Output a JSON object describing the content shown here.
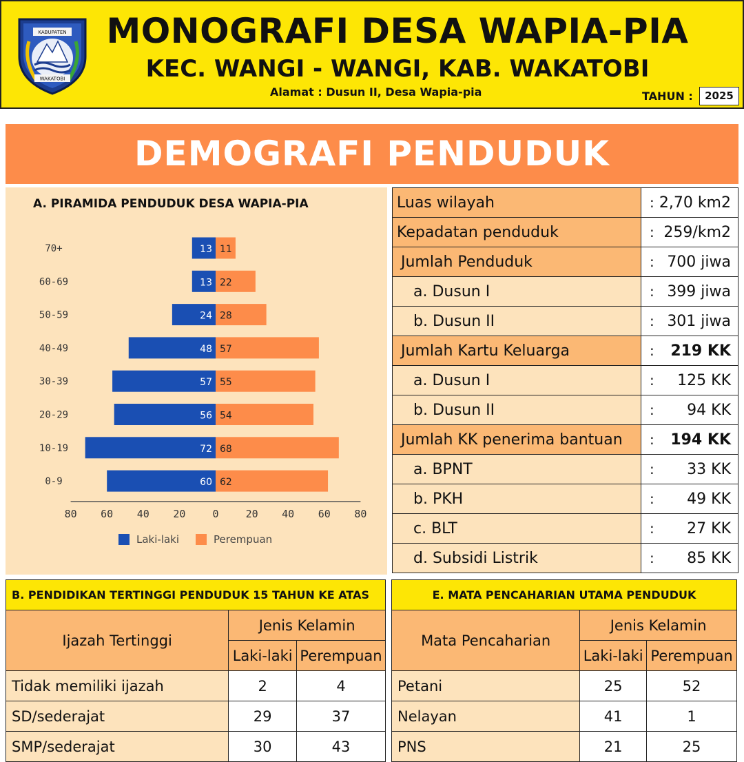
{
  "header": {
    "title": "MONOGRAFI DESA WAPIA-PIA",
    "subtitle": "KEC. WANGI - WANGI, KAB. WAKATOBI",
    "address": "Alamat : Dusun II, Desa Wapia-pia",
    "year_label": "TAHUN :",
    "year": "2025",
    "logo_top_text": "KABUPATEN",
    "logo_bottom_text": "WAKATOBI"
  },
  "banner": "DEMOGRAFI PENDUDUK",
  "pyramid_title": "A. PIRAMIDA PENDUDUK DESA WAPIA-PIA",
  "chart_data": {
    "type": "bar",
    "orientation": "horizontal",
    "title": "A. PIRAMIDA PENDUDUK DESA WAPIA-PIA",
    "categories": [
      "70+",
      "60-69",
      "50-59",
      "40-49",
      "30-39",
      "20-29",
      "10-19",
      "0-9"
    ],
    "series": [
      {
        "name": "Laki-laki",
        "values": [
          13,
          13,
          24,
          48,
          57,
          56,
          72,
          60
        ],
        "color": "#1a4fb3"
      },
      {
        "name": "Perempuan",
        "values": [
          11,
          22,
          28,
          57,
          55,
          54,
          68,
          62
        ],
        "color": "#fd8c4a"
      }
    ],
    "xticks": [
      "80",
      "60",
      "40",
      "20",
      "0",
      "20",
      "40",
      "60",
      "80"
    ],
    "xlim": [
      -80,
      80
    ],
    "legend": "bottom"
  },
  "stats": {
    "colon": ":",
    "rows": [
      {
        "label": "Luas wilayah",
        "value": "2,70 km2",
        "kind": "hdr"
      },
      {
        "label": "Kepadatan penduduk",
        "value": "259/km2",
        "kind": "hdr"
      },
      {
        "label": "Jumlah Penduduk",
        "value": "700 jiwa",
        "kind": "hdr"
      },
      {
        "label": "a. Dusun I",
        "value": "399 jiwa",
        "kind": "sub"
      },
      {
        "label": "b. Dusun II",
        "value": "301 jiwa",
        "kind": "sub"
      },
      {
        "label": "Jumlah Kartu Keluarga",
        "value": "219 KK",
        "kind": "hdr-bold"
      },
      {
        "label": "a. Dusun I",
        "value": "125 KK",
        "kind": "sub"
      },
      {
        "label": "b. Dusun II",
        "value": "94 KK",
        "kind": "sub"
      },
      {
        "label": "Jumlah KK penerima bantuan",
        "value": "194 KK",
        "kind": "hdr-bold"
      },
      {
        "label": "a. BPNT",
        "value": "33 KK",
        "kind": "sub"
      },
      {
        "label": "b. PKH",
        "value": "49 KK",
        "kind": "sub"
      },
      {
        "label": "c. BLT",
        "value": "27 KK",
        "kind": "sub"
      },
      {
        "label": "d. Subsidi Listrik",
        "value": "85 KK",
        "kind": "sub"
      }
    ]
  },
  "education": {
    "caption": "B. PENDIDIKAN TERTINGGI PENDUDUK 15 TAHUN KE ATAS",
    "col_main": "Ijazah Tertinggi",
    "col_group": "Jenis Kelamin",
    "col_male": "Laki-laki",
    "col_female": "Perempuan",
    "rows": [
      {
        "label": "Tidak memiliki ijazah",
        "male": "2",
        "female": "4"
      },
      {
        "label": "SD/sederajat",
        "male": "29",
        "female": "37"
      },
      {
        "label": "SMP/sederajat",
        "male": "30",
        "female": "43"
      }
    ]
  },
  "occupation": {
    "caption": "E. MATA PENCAHARIAN UTAMA PENDUDUK",
    "col_main": "Mata Pencaharian",
    "col_group": "Jenis Kelamin",
    "col_male": "Laki-laki",
    "col_female": "Perempuan",
    "rows": [
      {
        "label": "Petani",
        "male": "25",
        "female": "52"
      },
      {
        "label": "Nelayan",
        "male": "41",
        "female": "1"
      },
      {
        "label": "PNS",
        "male": "21",
        "female": "25"
      }
    ]
  }
}
